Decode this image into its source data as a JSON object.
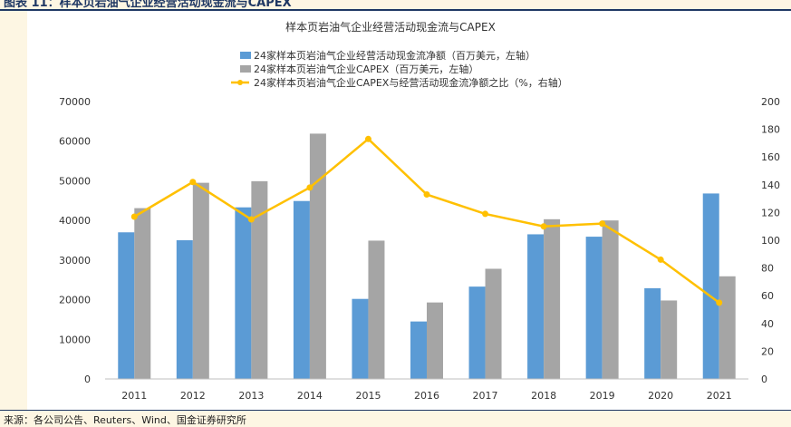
{
  "caption": "图表 11：样本页岩油气企业经营活动现金流与CAPEX",
  "source": "来源：各公司公告、Reuters、Wind、国金证券研究所",
  "chart_data": {
    "type": "bar",
    "title": "样本页岩油气企业经营活动现金流与CAPEX",
    "categories": [
      "2011",
      "2012",
      "2013",
      "2014",
      "2015",
      "2016",
      "2017",
      "2018",
      "2019",
      "2020",
      "2021"
    ],
    "series": [
      {
        "name": "24家样本页岩油气企业经营活动现金流净额（百万美元，左轴）",
        "type": "bar",
        "axis": "left",
        "color": "#5b9bd5",
        "values": [
          37000,
          35000,
          43300,
          44900,
          20200,
          14500,
          23300,
          36500,
          35900,
          22900,
          46800
        ]
      },
      {
        "name": "24家样本页岩油气企业CAPEX（百万美元，左轴）",
        "type": "bar",
        "axis": "left",
        "color": "#a5a5a5",
        "values": [
          43100,
          49500,
          49900,
          61900,
          34900,
          19300,
          27800,
          40300,
          40000,
          19800,
          25900
        ]
      },
      {
        "name": "24家样本页岩油气企业CAPEX与经营活动现金流净额之比（%，右轴）",
        "type": "line",
        "axis": "right",
        "color": "#ffc000",
        "values": [
          117,
          142,
          115,
          138,
          173,
          133,
          119,
          110,
          112,
          86,
          55
        ]
      }
    ],
    "yleft": {
      "min": 0,
      "max": 70000,
      "ticks": [
        "0",
        "10000",
        "20000",
        "30000",
        "40000",
        "50000",
        "60000",
        "70000"
      ]
    },
    "yright": {
      "min": 0,
      "max": 200,
      "ticks": [
        "0",
        "20",
        "40",
        "60",
        "80",
        "100",
        "120",
        "140",
        "160",
        "180",
        "200"
      ]
    },
    "legend_position": "top"
  }
}
